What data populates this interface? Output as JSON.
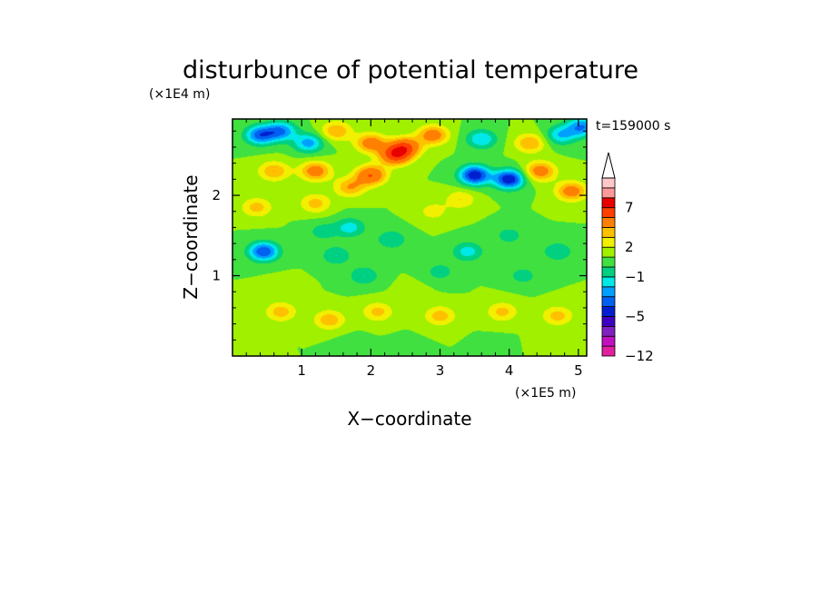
{
  "chart_data": {
    "type": "heatmap",
    "title": "disturbunce of potential temperature",
    "time_label": "t=159000 s",
    "xlabel": "X−coordinate",
    "ylabel": "Z−coordinate",
    "x_unit": "(×1E5 m)",
    "y_unit": "(×1E4 m)",
    "xlim": [
      0,
      5.12
    ],
    "ylim": [
      0,
      2.95
    ],
    "x_ticks": [
      "1",
      "2",
      "3",
      "4",
      "5"
    ],
    "y_ticks": [
      "1",
      "2"
    ],
    "colorbar": {
      "levels": [
        -12,
        -11,
        -9,
        -7,
        -5,
        -4,
        -3,
        -2,
        -1,
        0,
        1,
        2,
        3,
        5,
        7,
        9,
        11
      ],
      "tick_labels": [
        "7",
        "2",
        "−1",
        "−5",
        "−12"
      ],
      "colors": [
        "#e020a0",
        "#c010c0",
        "#8020c0",
        "#4000c0",
        "#0020d0",
        "#0060f0",
        "#00a0ff",
        "#00e8e8",
        "#00d080",
        "#40e040",
        "#a0f000",
        "#f0f000",
        "#ffc000",
        "#ff8000",
        "#ff4000",
        "#e80000",
        "#ff9898",
        "#ffc8c8"
      ]
    },
    "features": [
      {
        "x": 0.4,
        "z": 2.75,
        "v": -4.5
      },
      {
        "x": 0.7,
        "z": 2.8,
        "v": -4
      },
      {
        "x": 1.1,
        "z": 2.65,
        "v": -3.5
      },
      {
        "x": 1.5,
        "z": 2.8,
        "v": 3
      },
      {
        "x": 2.0,
        "z": 2.65,
        "v": 4
      },
      {
        "x": 2.5,
        "z": 2.6,
        "v": 5
      },
      {
        "x": 2.9,
        "z": 2.75,
        "v": 4
      },
      {
        "x": 3.6,
        "z": 2.7,
        "v": -3
      },
      {
        "x": 4.3,
        "z": 2.65,
        "v": 3
      },
      {
        "x": 4.75,
        "z": 2.75,
        "v": -3
      },
      {
        "x": 5.05,
        "z": 2.85,
        "v": -4
      },
      {
        "x": 0.6,
        "z": 2.3,
        "v": 3
      },
      {
        "x": 1.2,
        "z": 2.3,
        "v": 4
      },
      {
        "x": 1.7,
        "z": 2.1,
        "v": 3
      },
      {
        "x": 2.0,
        "z": 2.25,
        "v": 5
      },
      {
        "x": 2.35,
        "z": 2.5,
        "v": 6
      },
      {
        "x": 3.5,
        "z": 2.25,
        "v": -6
      },
      {
        "x": 4.0,
        "z": 2.2,
        "v": -6
      },
      {
        "x": 4.45,
        "z": 2.3,
        "v": 4
      },
      {
        "x": 4.9,
        "z": 2.05,
        "v": 4
      },
      {
        "x": 0.35,
        "z": 1.85,
        "v": 2.5
      },
      {
        "x": 1.2,
        "z": 1.9,
        "v": 2.5
      },
      {
        "x": 2.9,
        "z": 1.8,
        "v": 1.5
      },
      {
        "x": 3.3,
        "z": 1.95,
        "v": 2
      },
      {
        "x": 1.3,
        "z": 1.55,
        "v": -1.5
      },
      {
        "x": 1.7,
        "z": 1.6,
        "v": -2.5
      },
      {
        "x": 2.3,
        "z": 1.45,
        "v": -2
      },
      {
        "x": 4.0,
        "z": 1.5,
        "v": -1.5
      },
      {
        "x": 0.45,
        "z": 1.3,
        "v": -5
      },
      {
        "x": 1.5,
        "z": 1.25,
        "v": -2
      },
      {
        "x": 3.4,
        "z": 1.3,
        "v": -2.5
      },
      {
        "x": 4.7,
        "z": 1.3,
        "v": -2
      },
      {
        "x": 1.9,
        "z": 1.0,
        "v": -2
      },
      {
        "x": 3.0,
        "z": 1.05,
        "v": -1.5
      },
      {
        "x": 4.2,
        "z": 1.0,
        "v": -1.5
      },
      {
        "x": 0.7,
        "z": 0.85,
        "v": 0.4
      },
      {
        "x": 2.6,
        "z": 0.8,
        "v": 0.4
      },
      {
        "x": 0.7,
        "z": 0.55,
        "v": 2.6
      },
      {
        "x": 1.4,
        "z": 0.45,
        "v": 2.8
      },
      {
        "x": 2.1,
        "z": 0.55,
        "v": 2.4
      },
      {
        "x": 3.0,
        "z": 0.5,
        "v": 2.6
      },
      {
        "x": 3.9,
        "z": 0.55,
        "v": 2.4
      },
      {
        "x": 4.7,
        "z": 0.5,
        "v": 2.5
      },
      {
        "x": 1.7,
        "z": 0.15,
        "v": -0.3
      },
      {
        "x": 2.5,
        "z": 0.1,
        "v": -0.2
      },
      {
        "x": 3.8,
        "z": 0.12,
        "v": -0.2
      },
      {
        "x": 4.6,
        "z": 0.18,
        "v": 0.5
      }
    ]
  }
}
